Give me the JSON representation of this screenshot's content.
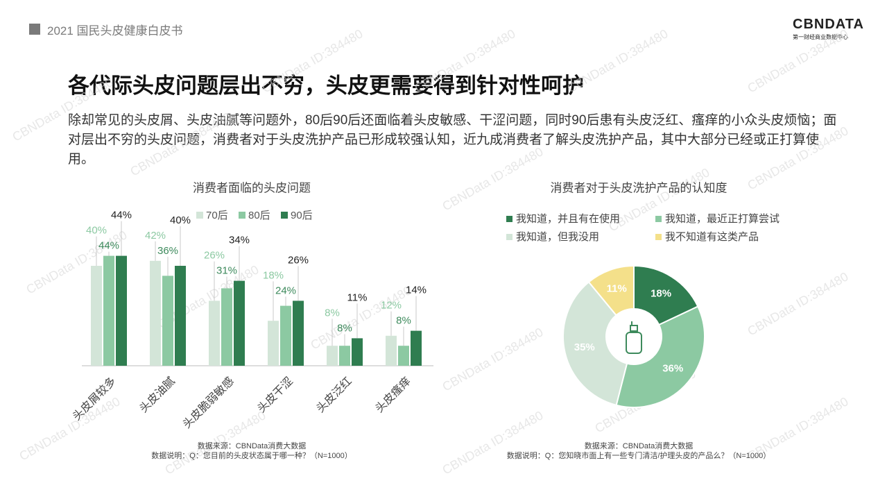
{
  "header": {
    "title": "2021 国民头皮健康白皮书",
    "logo": "CBNDATA",
    "logo_sub": "第一财经商业数据中心",
    "watermark": "CBNData ID:384480"
  },
  "title": "各代际头皮问题层出不穷，头皮更需要得到针对性呵护",
  "paragraph": "除却常见的头皮屑、头皮油腻等问题外，80后90后还面临着头皮敏感、干涩问题，同时90后患有头皮泛红、瘙痒的小众头皮烦恼；面对层出不穷的头皮问题，消费者对于头皮洗护产品已形成较强认知，近九成消费者了解头皮洗护产品，其中大部分已经或正打算使用。",
  "chart_data": [
    {
      "type": "bar",
      "title": "消费者面临的头皮问题",
      "categories": [
        "头皮屑较多",
        "头皮油腻",
        "头皮脆弱敏感",
        "头皮干涩",
        "头皮泛红",
        "头皮瘙痒"
      ],
      "series": [
        {
          "name": "70后",
          "color": "#d3e5d8",
          "values": [
            40,
            42,
            26,
            18,
            8,
            12
          ],
          "value_labels": [
            "40%",
            "42%",
            "26%",
            "18%",
            "8%",
            "12%"
          ]
        },
        {
          "name": "80后",
          "color": "#8cc9a2",
          "values": [
            44,
            36,
            31,
            24,
            8,
            8
          ],
          "value_labels": [
            "44%",
            "36%",
            "31%",
            "24%",
            "8%",
            "8%"
          ]
        },
        {
          "name": "90后",
          "color": "#2f7d50",
          "values": [
            44,
            40,
            34,
            26,
            11,
            14
          ],
          "value_labels": [
            "44%",
            "40%",
            "34%",
            "26%",
            "11%",
            "14%"
          ]
        }
      ],
      "notes": [
        "数据来源：CBNData消费大数据",
        "数据说明：Q：您目前的头皮状态属于哪一种？（N=1000）"
      ]
    },
    {
      "type": "donut",
      "title": "消费者对于头皮洗护产品的认知度",
      "categories": [
        "我知道，并且有在使用",
        "我知道，最近正打算尝试",
        "我知道，但我没用",
        "我不知道有这类产品"
      ],
      "values": [
        18,
        36,
        35,
        11
      ],
      "value_labels": [
        "18%",
        "36%",
        "35%",
        "11%"
      ],
      "colors": [
        "#2f7d50",
        "#8cc9a2",
        "#d3e5d8",
        "#f4e08a"
      ],
      "notes": [
        "数据来源：CBNData消费大数据",
        "数据说明：Q：您知晓市面上有一些专门清洁/护理头皮的产品么？（N=1000）"
      ]
    }
  ]
}
